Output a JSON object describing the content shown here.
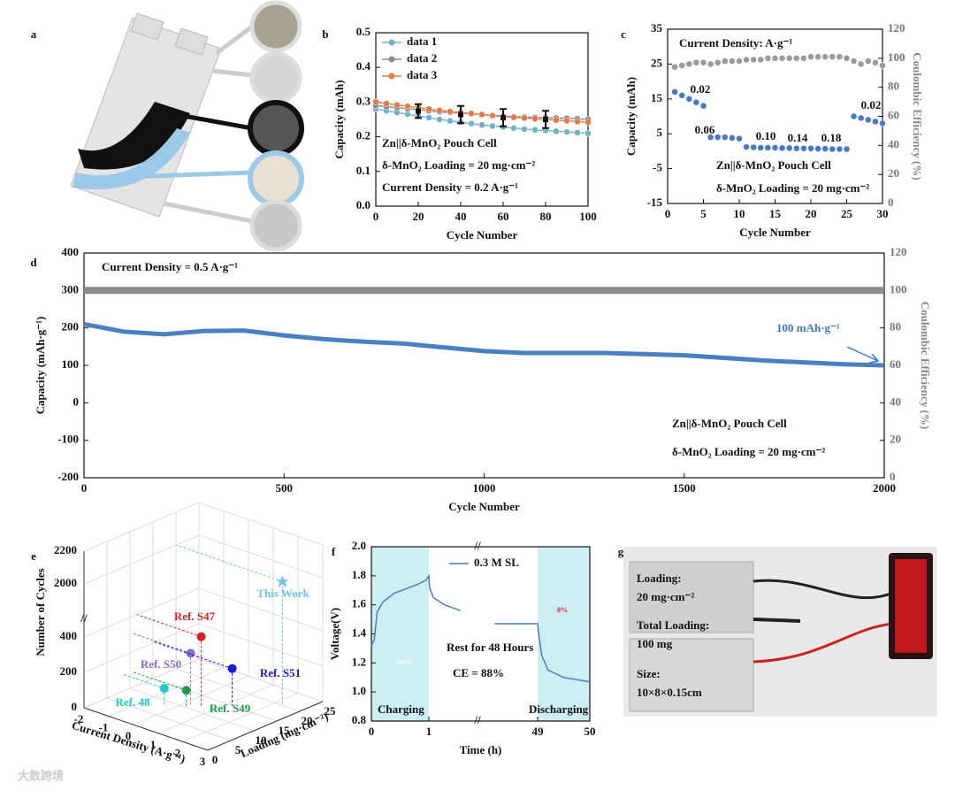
{
  "panel_labels": [
    "a",
    "b",
    "c",
    "d",
    "e",
    "f",
    "g"
  ],
  "watermark": "大数跨境",
  "panel_g": {
    "labels": [
      "Loading:",
      "20 mg·cm⁻²",
      "Total Loading:",
      "100 mg",
      "Size:",
      "10×8×0.15cm"
    ]
  },
  "chart_data": [
    {
      "type": "line",
      "xlabel": "Cycle Number",
      "ylabel": "Capacity (mAh)",
      "markers": true,
      "xlim": [
        0,
        100
      ],
      "xticks": [
        0,
        20,
        40,
        60,
        80,
        100
      ],
      "ylim": [
        0,
        0.5
      ],
      "yticks": [
        {
          "value": 0,
          "label": "0.0"
        },
        0.1,
        0.2,
        0.3,
        0.4,
        0.5
      ],
      "x": [
        0,
        5,
        10,
        15,
        20,
        25,
        30,
        35,
        40,
        45,
        50,
        55,
        60,
        65,
        70,
        75,
        80,
        85,
        90,
        95,
        100
      ],
      "series": [
        {
          "name": "data 1",
          "color": "#6fb3c8",
          "values": [
            0.28,
            0.275,
            0.27,
            0.265,
            0.26,
            0.255,
            0.25,
            0.246,
            0.242,
            0.238,
            0.234,
            0.231,
            0.228,
            0.225,
            0.222,
            0.22,
            0.218,
            0.216,
            0.214,
            0.212,
            0.21
          ]
        },
        {
          "name": "data 2",
          "color": "#8c8c8c",
          "values": [
            0.29,
            0.287,
            0.284,
            0.281,
            0.278,
            0.275,
            0.272,
            0.27,
            0.268,
            0.266,
            0.264,
            0.262,
            0.26,
            0.258,
            0.257,
            0.256,
            0.255,
            0.254,
            0.253,
            0.252,
            0.25
          ]
        },
        {
          "name": "data 3",
          "color": "#e07b4a",
          "values": [
            0.3,
            0.296,
            0.292,
            0.288,
            0.284,
            0.28,
            0.276,
            0.273,
            0.27,
            0.267,
            0.264,
            0.261,
            0.258,
            0.256,
            0.254,
            0.252,
            0.25,
            0.248,
            0.246,
            0.244,
            0.242
          ]
        }
      ],
      "error_bars": {
        "x": [
          20,
          40,
          60,
          80
        ],
        "values": [
          0.274,
          0.264,
          0.255,
          0.25
        ],
        "errors": [
          0.02,
          0.025,
          0.025,
          0.025
        ]
      },
      "annotations": [
        "Zn||δ-MnO₂  Pouch Cell",
        "δ-MnO₂ Loading = 20 mg·cm⁻²",
        "Current Density = 0.2 A·g⁻¹"
      ]
    },
    {
      "type": "scatter",
      "xlabel": "Cycle Number",
      "ylabel": "Capacity (mAh)",
      "y2label": "Coulombic Efficiency (%)",
      "xlim": [
        0,
        30
      ],
      "xticks": [
        0,
        5,
        10,
        15,
        20,
        25,
        30
      ],
      "ylim": [
        -15,
        35
      ],
      "yticks": [
        -15,
        -5,
        5,
        15,
        25,
        35
      ],
      "y2lim": [
        0,
        120
      ],
      "y2ticks": [
        0,
        20,
        40,
        60,
        80,
        100,
        120
      ],
      "x": [
        1,
        2,
        3,
        4,
        5,
        6,
        7,
        8,
        9,
        10,
        11,
        12,
        13,
        14,
        15,
        16,
        17,
        18,
        19,
        20,
        21,
        22,
        23,
        24,
        25,
        26,
        27,
        28,
        29,
        30
      ],
      "series": [
        {
          "color": "#4a78c2",
          "values": [
            17,
            16,
            15,
            14,
            13,
            4,
            4,
            4,
            3.8,
            3.6,
            1.2,
            1.1,
            1,
            1,
            1,
            0.9,
            0.9,
            0.8,
            0.8,
            0.8,
            0.7,
            0.7,
            0.6,
            0.6,
            0.6,
            10,
            9.5,
            9,
            8.5,
            8
          ]
        },
        {
          "color": "#9a9a9a",
          "axis": "y2",
          "values": [
            94,
            95,
            96,
            97,
            97,
            96,
            97,
            98,
            98,
            98,
            99,
            99,
            99,
            100,
            100,
            100,
            100,
            100,
            100,
            101,
            101,
            101,
            101,
            101,
            100,
            98,
            96,
            98,
            97,
            95
          ]
        }
      ],
      "rate_labels": [
        "0.02",
        "0.06",
        "0.10",
        "0.14",
        "0.18",
        "0.02"
      ],
      "annotations": [
        "Current Density: A·g⁻¹",
        "Zn||δ-MnO₂  Pouch Cell",
        "δ-MnO₂ Loading = 20 mg·cm⁻²"
      ]
    },
    {
      "type": "line",
      "xlabel": "Cycle Number",
      "ylabel": "Capacity (mAh·g⁻¹)",
      "y2label": "Coulombic Efficiency (%)",
      "xlim": [
        0,
        2000
      ],
      "xticks": [
        0,
        500,
        1000,
        1500,
        2000
      ],
      "ylim": [
        -200,
        400
      ],
      "yticks": [
        -200,
        -100,
        0,
        100,
        200,
        300,
        400
      ],
      "y2lim": [
        0,
        120
      ],
      "y2ticks": [
        0,
        20,
        40,
        60,
        80,
        100,
        120
      ],
      "x": [
        0,
        100,
        200,
        300,
        400,
        500,
        600,
        700,
        800,
        900,
        1000,
        1100,
        1200,
        1300,
        1400,
        1500,
        1600,
        1700,
        1800,
        1900,
        2000
      ],
      "series": [
        {
          "color": "#4a7fc1",
          "values": [
            210,
            190,
            183,
            192,
            193,
            180,
            170,
            163,
            158,
            148,
            138,
            133,
            133,
            133,
            130,
            127,
            120,
            113,
            108,
            103,
            100
          ]
        },
        {
          "color": "#8c8c8c",
          "axis": "y2",
          "values": [
            100,
            100,
            100,
            100,
            100,
            100,
            100,
            100,
            100,
            100,
            100,
            100,
            100,
            100,
            100,
            100,
            100,
            100,
            100,
            100,
            100
          ]
        }
      ],
      "annotations": [
        "Current Density = 0.5 A·g⁻¹",
        "100 mAh·g⁻¹",
        "Zn||δ-MnO₂  Pouch Cell",
        "δ-MnO₂ Loading = 20 mg·cm⁻²"
      ]
    },
    {
      "type": "scatter3d",
      "xlabel": "Current Density (A·g⁻¹)",
      "ylabel": "Loading (mg·cm⁻²)",
      "zlabel": "Number of Cycles",
      "xlim": [
        -2,
        3
      ],
      "xticks": [
        -2,
        -1,
        0,
        1,
        2,
        3
      ],
      "ylim": [
        0,
        25
      ],
      "yticks": [
        0,
        5,
        10,
        15,
        20,
        25
      ],
      "zlim": [
        0,
        2200
      ],
      "zticks": [
        0,
        200,
        400,
        2000,
        2200
      ],
      "points": [
        {
          "label": "This Work",
          "current_density": 2.3,
          "loading": 20,
          "cycles": 2000,
          "color": "#6fc3e8"
        },
        {
          "label": "Ref. S47",
          "current_density": 0.6,
          "loading": 11.5,
          "cycles": 400,
          "color": "#d92020"
        },
        {
          "label": "Ref. S50",
          "current_density": 0.3,
          "loading": 10.8,
          "cycles": 300,
          "color": "#8a6cc8"
        },
        {
          "label": "Ref. S51",
          "current_density": 1.2,
          "loading": 15,
          "cycles": 210,
          "color": "#1a1ad0"
        },
        {
          "label": "Ref. 48",
          "current_density": -0.3,
          "loading": 8.3,
          "cycles": 100,
          "color": "#22c8c8"
        },
        {
          "label": "Ref. S49",
          "current_density": 0.2,
          "loading": 10.4,
          "cycles": 90,
          "color": "#1f9a4a"
        }
      ]
    },
    {
      "type": "line",
      "xlabel": "Time (h)",
      "ylabel": "Voltage(V)",
      "xlim": [
        0,
        50
      ],
      "xticks": [
        0,
        1,
        49,
        50
      ],
      "ylim": [
        0.8,
        2.0
      ],
      "yticks": [
        0.8,
        {
          "value": 1,
          "label": "1.0"
        },
        1.2,
        1.4,
        1.6,
        1.8,
        {
          "value": 2,
          "label": "2.0"
        }
      ],
      "x": [
        0,
        0.05,
        0.1,
        0.2,
        0.4,
        0.6,
        0.8,
        0.95,
        1,
        1.3,
        3,
        8,
        15,
        24,
        30,
        40,
        49,
        49.02,
        49.08,
        49.2,
        49.5,
        50
      ],
      "series": [
        {
          "name": "0.3 M SL",
          "color": "#4a7fc1",
          "values": [
            1.32,
            1.36,
            1.55,
            1.62,
            1.68,
            1.71,
            1.74,
            1.77,
            1.8,
            1.72,
            1.65,
            1.6,
            1.56,
            null,
            1.47,
            1.47,
            1.47,
            1.4,
            1.25,
            1.15,
            1.1,
            1.07
          ]
        }
      ],
      "shaded": [
        [
          0,
          1
        ],
        [
          49,
          50
        ]
      ],
      "annotations": [
        "Rest for 48 Hours",
        "CE = 88%",
        "Charging",
        "Discharging",
        "100%",
        "0%"
      ]
    }
  ]
}
